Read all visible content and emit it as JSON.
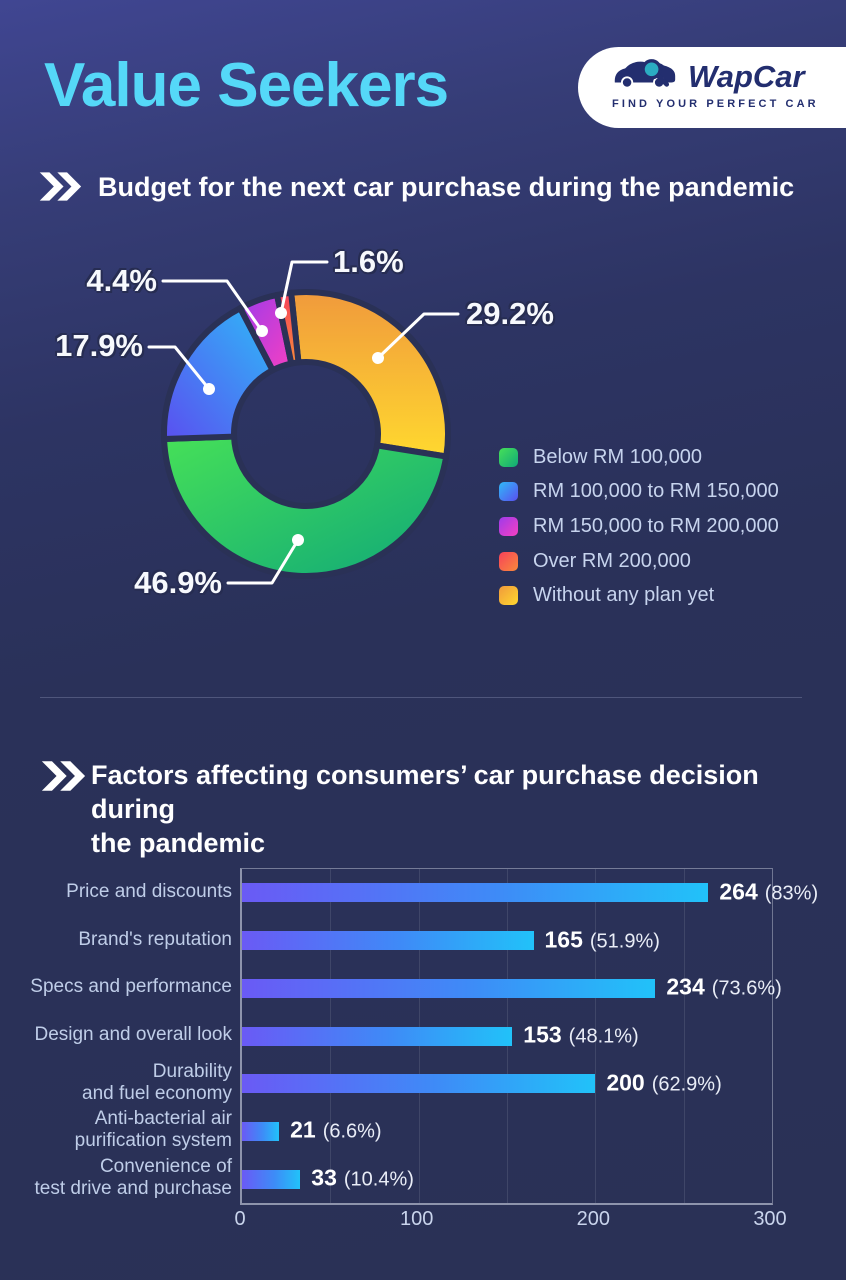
{
  "page": {
    "title": "Value Seekers"
  },
  "logo": {
    "brand": "WapCar",
    "tagline": "FIND YOUR PERFECT CAR"
  },
  "colors": {
    "background_top": "#404692",
    "background_bottom": "#2a3156",
    "title_accent": "#55d8f8",
    "heading_text": "#ffffff",
    "legend_text": "#c7d4ee",
    "bar_label_text": "#bfcde8",
    "bar_gradient": [
      "#6a5af5",
      "#3e8bf7",
      "#21c2f9"
    ],
    "axis": "#8e94ac"
  },
  "section1": {
    "heading": "Budget for the next car purchase during the pandemic"
  },
  "section2": {
    "heading": "Factors affecting consumers’ car purchase decision during the pandemic",
    "heading_line1": "Factors affecting consumers’ car purchase decision during",
    "heading_line2": "the pandemic"
  },
  "chart_data": [
    {
      "type": "pie",
      "subtype": "donut",
      "title": "Budget for the next car purchase during the pandemic",
      "legend_position": "right",
      "slices": [
        {
          "label": "Below RM 100,000",
          "value": 46.9,
          "pct_label": "46.9%",
          "color_start": "#46e058",
          "color_end": "#10a878"
        },
        {
          "label": "RM 100,000 to RM 150,000",
          "value": 17.9,
          "pct_label": "17.9%",
          "color_start": "#2fb9f8",
          "color_end": "#5a4ff0"
        },
        {
          "label": "RM 150,000 to RM 200,000",
          "value": 4.4,
          "pct_label": "4.4%",
          "color_start": "#9e3bea",
          "color_end": "#f540c2"
        },
        {
          "label": "Over RM 200,000",
          "value": 1.6,
          "pct_label": "1.6%",
          "color_start": "#f7415a",
          "color_end": "#f88a3b"
        },
        {
          "label": "Without any plan yet",
          "value": 29.2,
          "pct_label": "29.2%",
          "color_start": "#f09a3c",
          "color_end": "#ffd82f"
        }
      ],
      "clockwise_order_from_top": [
        4,
        0,
        1,
        2,
        3
      ],
      "start_angle_deg": -6
    },
    {
      "type": "bar",
      "orientation": "horizontal",
      "title": "Factors affecting consumers’ car purchase decision during the pandemic",
      "categories": [
        "Price and discounts",
        "Brand's reputation",
        "Specs and performance",
        "Design and overall look",
        "Durability and fuel economy",
        "Anti-bacterial air purification system",
        "Convenience of test drive and purchase"
      ],
      "label_lines": [
        [
          "Price and discounts"
        ],
        [
          "Brand's reputation"
        ],
        [
          "Specs and performance"
        ],
        [
          "Design and overall look"
        ],
        [
          "Durability",
          "and fuel economy"
        ],
        [
          "Anti-bacterial air",
          "purification system"
        ],
        [
          "Convenience of",
          "test drive and purchase"
        ]
      ],
      "values": [
        264,
        165,
        234,
        153,
        200,
        21,
        33
      ],
      "pct_labels": [
        "(83%)",
        "(51.9%)",
        "(73.6%)",
        "(48.1%)",
        "(62.9%)",
        "(6.6%)",
        "(10.4%)"
      ],
      "xlim": [
        0,
        300
      ],
      "xticks": [
        0,
        100,
        200,
        300
      ],
      "gridline_every": 50,
      "grid": true
    }
  ]
}
